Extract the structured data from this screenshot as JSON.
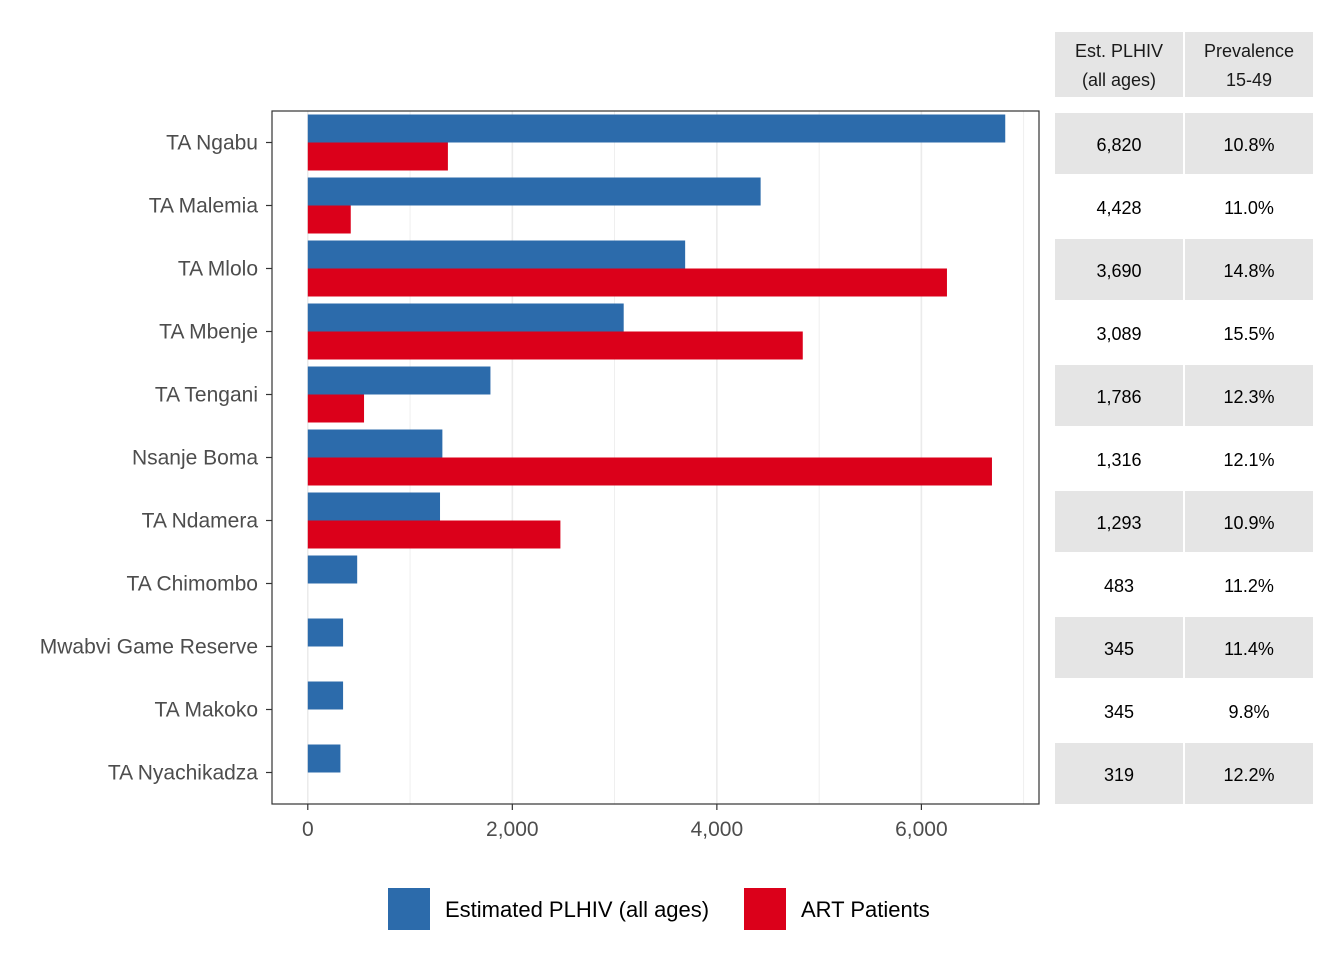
{
  "chart_data": {
    "type": "bar",
    "orientation": "horizontal",
    "categories": [
      "TA Ngabu",
      "TA Malemia",
      "TA Mlolo",
      "TA Mbenje",
      "TA Tengani",
      "Nsanje Boma",
      "TA Ndamera",
      "TA Chimombo",
      "Mwabvi Game Reserve",
      "TA Makoko",
      "TA Nyachikadza"
    ],
    "series": [
      {
        "name": "Estimated PLHIV (all ages)",
        "color": "#2c6bab",
        "values": [
          6820,
          4428,
          3690,
          3089,
          1786,
          1316,
          1293,
          483,
          345,
          345,
          319
        ]
      },
      {
        "name": "ART Patients",
        "color": "#db001a",
        "values": [
          1370,
          420,
          6250,
          4840,
          550,
          6690,
          2470,
          0,
          0,
          0,
          0
        ]
      }
    ],
    "xlim": [
      -350,
      7150
    ],
    "x_ticks": [
      0,
      2000,
      4000,
      6000
    ],
    "x_tick_labels": [
      "0",
      "2,000",
      "4,000",
      "6,000"
    ],
    "grid": true,
    "legend_position": "bottom",
    "title": "",
    "xlabel": "",
    "ylabel": ""
  },
  "table": {
    "headers": [
      [
        "Est. PLHIV",
        "(all ages)"
      ],
      [
        "Prevalence",
        "15-49"
      ]
    ],
    "rows": [
      [
        "6,820",
        "10.8%"
      ],
      [
        "4,428",
        "11.0%"
      ],
      [
        "3,690",
        "14.8%"
      ],
      [
        "3,089",
        "15.5%"
      ],
      [
        "1,786",
        "12.3%"
      ],
      [
        "1,316",
        "12.1%"
      ],
      [
        "1,293",
        "10.9%"
      ],
      [
        "483",
        "11.2%"
      ],
      [
        "345",
        "11.4%"
      ],
      [
        "345",
        "9.8%"
      ],
      [
        "319",
        "12.2%"
      ]
    ]
  },
  "colors": {
    "plhiv": "#2c6bab",
    "art": "#db001a",
    "grid": "#ebebeb",
    "table_shade": "#e5e5e5"
  }
}
